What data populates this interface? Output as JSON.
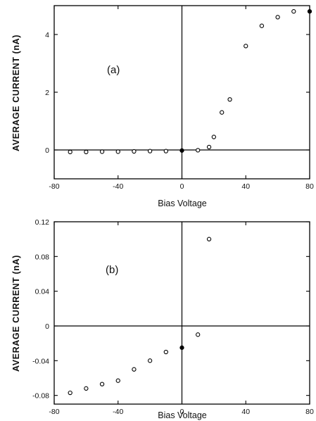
{
  "chart_data": [
    {
      "type": "scatter",
      "panel_label": "(a)",
      "xlabel": "Bias Voltage",
      "ylabel": "AVERAGE CURRENT (nA)",
      "xlim": [
        -80,
        80
      ],
      "ylim": [
        -1.0,
        5.0
      ],
      "xticks": [
        -80,
        -40,
        0,
        40,
        80
      ],
      "yticks": [
        0,
        2,
        4
      ],
      "x_tick_labels": [
        "-80",
        "-40",
        "0",
        "40",
        "80"
      ],
      "y_tick_labels": [
        "0",
        "2",
        "4"
      ],
      "zero_lines": true,
      "points": [
        {
          "x": -70,
          "y": -0.07,
          "filled": false
        },
        {
          "x": -60,
          "y": -0.07,
          "filled": false
        },
        {
          "x": -50,
          "y": -0.06,
          "filled": false
        },
        {
          "x": -40,
          "y": -0.06,
          "filled": false
        },
        {
          "x": -30,
          "y": -0.05,
          "filled": false
        },
        {
          "x": -20,
          "y": -0.04,
          "filled": false
        },
        {
          "x": -10,
          "y": -0.04,
          "filled": false
        },
        {
          "x": 0,
          "y": -0.02,
          "filled": true
        },
        {
          "x": 10,
          "y": -0.01,
          "filled": false
        },
        {
          "x": 17,
          "y": 0.1,
          "filled": false
        },
        {
          "x": 20,
          "y": 0.45,
          "filled": false
        },
        {
          "x": 25,
          "y": 1.3,
          "filled": false
        },
        {
          "x": 30,
          "y": 1.75,
          "filled": false
        },
        {
          "x": 40,
          "y": 3.6,
          "filled": false
        },
        {
          "x": 50,
          "y": 4.3,
          "filled": false
        },
        {
          "x": 60,
          "y": 4.6,
          "filled": false
        },
        {
          "x": 70,
          "y": 4.8,
          "filled": false
        },
        {
          "x": 80,
          "y": 4.8,
          "filled": true
        }
      ]
    },
    {
      "type": "scatter",
      "panel_label": "(b)",
      "xlabel": "Bias Voltage",
      "ylabel": "AVERAGE CURRENT (nA)",
      "xlim": [
        -80,
        80
      ],
      "ylim": [
        -0.09,
        0.12
      ],
      "xticks": [
        -80,
        -40,
        0,
        40,
        80
      ],
      "yticks": [
        -0.08,
        -0.04,
        0,
        0.04,
        0.08,
        0.12
      ],
      "x_tick_labels": [
        "-80",
        "-40",
        "0",
        "40",
        "80"
      ],
      "y_tick_labels": [
        "-0.08",
        "-0.04",
        "0",
        "0.04",
        "0.08",
        "0.12"
      ],
      "zero_lines": true,
      "points": [
        {
          "x": -70,
          "y": -0.077,
          "filled": false
        },
        {
          "x": -60,
          "y": -0.072,
          "filled": false
        },
        {
          "x": -50,
          "y": -0.067,
          "filled": false
        },
        {
          "x": -40,
          "y": -0.063,
          "filled": false
        },
        {
          "x": -30,
          "y": -0.05,
          "filled": false
        },
        {
          "x": -20,
          "y": -0.04,
          "filled": false
        },
        {
          "x": -10,
          "y": -0.03,
          "filled": false
        },
        {
          "x": 0,
          "y": -0.025,
          "filled": true
        },
        {
          "x": 10,
          "y": -0.01,
          "filled": false
        },
        {
          "x": 17,
          "y": 0.1,
          "filled": false
        }
      ]
    }
  ]
}
